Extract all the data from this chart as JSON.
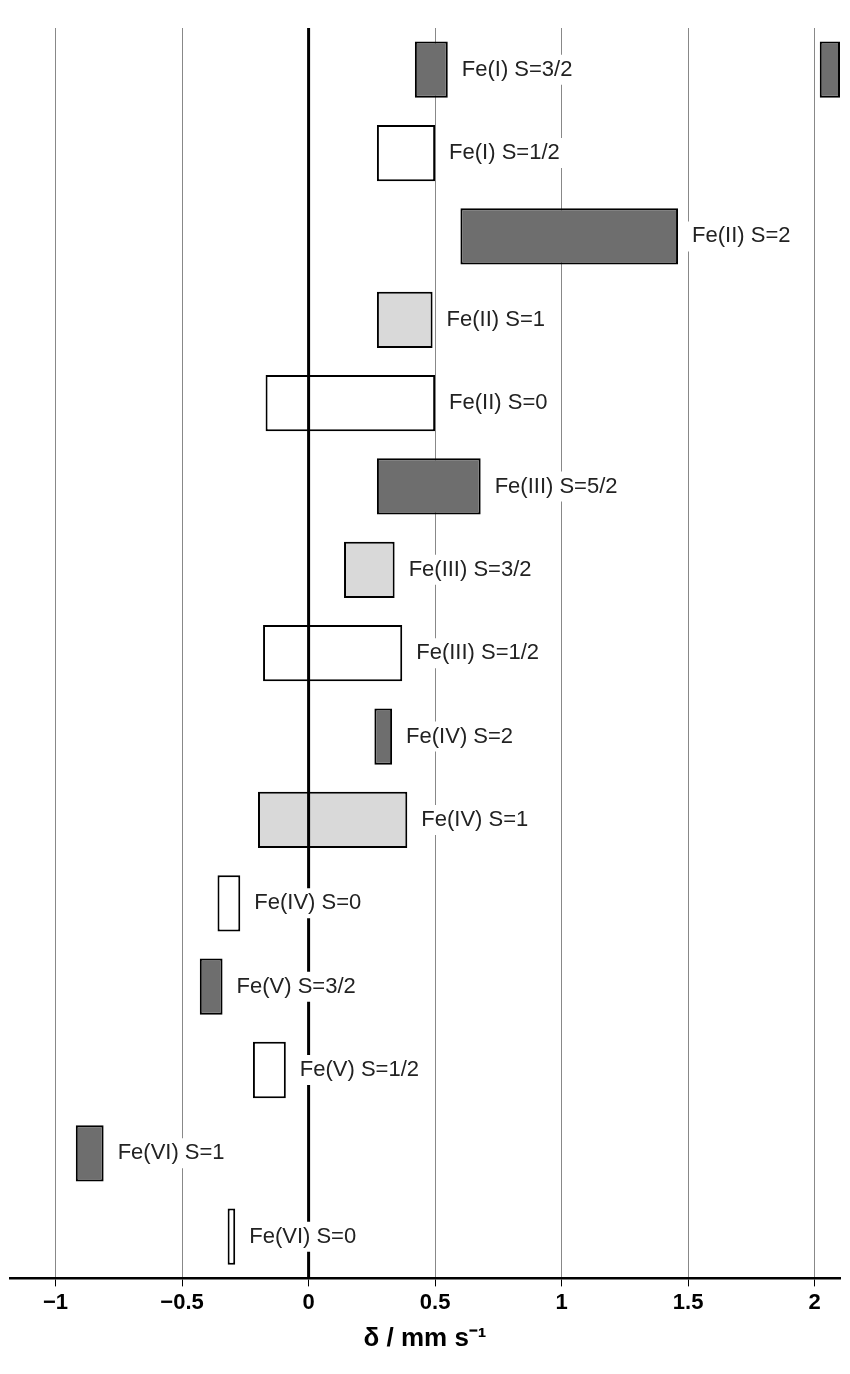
{
  "chart_data": {
    "type": "bar",
    "orientation": "horizontal",
    "xlabel": "δ / mm s⁻¹",
    "categories": [
      "Fe(I) S=3/2",
      "Fe(I) S=1/2",
      "Fe(II) S=2",
      "Fe(II) S=1",
      "Fe(II) S=0",
      "Fe(III) S=5/2",
      "Fe(III) S=3/2",
      "Fe(III) S=1/2",
      "Fe(IV) S=2",
      "Fe(IV) S=1",
      "Fe(IV) S=0",
      "Fe(V) S=3/2",
      "Fe(V) S=1/2",
      "Fe(VI) S=1",
      "Fe(VI) S=0"
    ],
    "series": [
      {
        "base": [
          0.42,
          0.27,
          0.6,
          0.27,
          -0.17,
          0.27,
          0.14,
          -0.18,
          0.26,
          -0.2,
          -0.36,
          -0.43,
          -0.22,
          -0.92,
          -0.32
        ],
        "values": [
          0.13,
          0.23,
          0.86,
          0.22,
          0.67,
          0.41,
          0.2,
          0.55,
          0.07,
          0.59,
          0.09,
          0.09,
          0.13,
          0.11,
          0.03
        ],
        "colors": [
          "#6e6e6e",
          "#ffffff",
          "#6e6e6e",
          "#d9d9d9",
          "#ffffff",
          "#6e6e6e",
          "#d9d9d9",
          "#ffffff",
          "#6e6e6e",
          "#d9d9d9",
          "#ffffff",
          "#6e6e6e",
          "#ffffff",
          "#6e6e6e",
          "#ffffff"
        ]
      },
      {
        "base": [
          2.02,
          null,
          null,
          null,
          null,
          null,
          null,
          null,
          null,
          null,
          null,
          null,
          null,
          null,
          null
        ],
        "values": [
          0.08,
          null,
          null,
          null,
          null,
          null,
          null,
          null,
          null,
          null,
          null,
          null,
          null,
          null,
          null
        ],
        "color": "#6e6e6e"
      }
    ],
    "xlim": [
      -1.18,
      2.1
    ],
    "xticks": [
      {
        "value": -1,
        "label": "−1"
      },
      {
        "value": -0.5,
        "label": "−0.5"
      },
      0,
      0.5,
      1,
      1.5,
      2
    ],
    "ref_lines": [
      {
        "axis": "x",
        "value": 0,
        "color": "#000000"
      }
    ],
    "grid": "x",
    "legend": false,
    "tick_labels": "x"
  }
}
